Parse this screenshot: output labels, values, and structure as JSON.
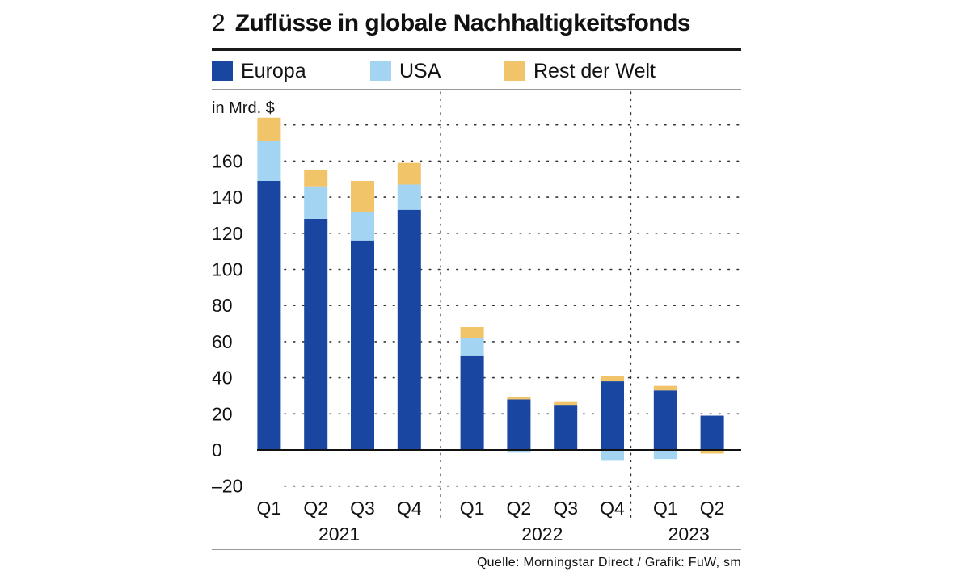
{
  "title": {
    "number": "2",
    "text": "Zuflüsse in globale Nachhaltigkeitsfonds"
  },
  "legend": [
    {
      "label": "Europa",
      "color": "#1846a0"
    },
    {
      "label": "USA",
      "color": "#a3d4f2"
    },
    {
      "label": "Rest der Welt",
      "color": "#f2c46a"
    }
  ],
  "source": "Quelle: Morningstar Direct / Grafik: FuW, sm",
  "chart_data": {
    "type": "bar",
    "stacked": true,
    "unit_label": "in Mrd. $",
    "ylim": [
      -20,
      180
    ],
    "yticks": [
      -20,
      0,
      20,
      40,
      60,
      80,
      100,
      120,
      140,
      160
    ],
    "ytick_labels": [
      "–20",
      "0",
      "20",
      "40",
      "60",
      "80",
      "100",
      "120",
      "140",
      "160"
    ],
    "grid": "dotted",
    "categories": [
      "Q1",
      "Q2",
      "Q3",
      "Q4",
      "Q1",
      "Q2",
      "Q3",
      "Q4",
      "Q1",
      "Q2"
    ],
    "years": [
      {
        "label": "2021",
        "quarters": 4
      },
      {
        "label": "2022",
        "quarters": 4
      },
      {
        "label": "2023",
        "quarters": 2
      }
    ],
    "series": [
      {
        "name": "Europa",
        "color": "#1846a0",
        "values": [
          149,
          128,
          116,
          133,
          52,
          28,
          25,
          38,
          33,
          19
        ]
      },
      {
        "name": "USA",
        "color": "#a3d4f2",
        "values": [
          22,
          18,
          16,
          14,
          10,
          -1.5,
          0,
          -6,
          -5,
          0
        ]
      },
      {
        "name": "Rest der Welt",
        "color": "#f2c46a",
        "values": [
          13,
          9,
          17,
          12,
          6,
          1.5,
          2,
          3,
          2.5,
          -2
        ]
      }
    ]
  }
}
